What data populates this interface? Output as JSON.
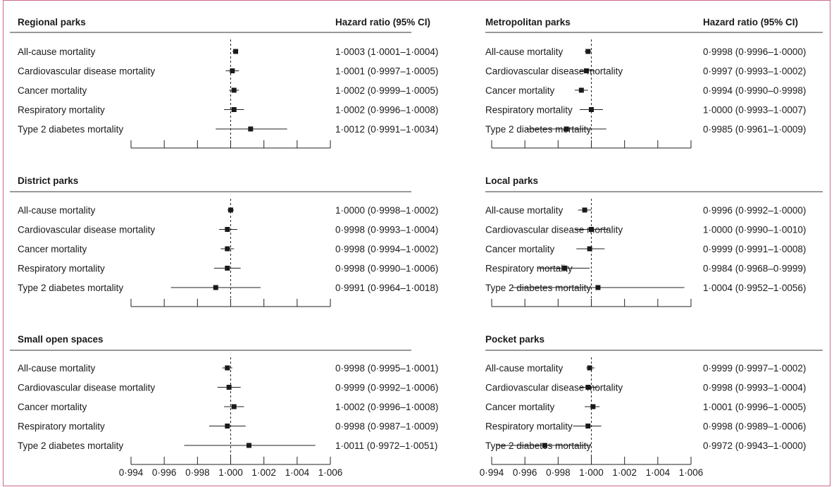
{
  "chart_data": {
    "type": "forest",
    "column_header": "Hazard ratio (95% CI)",
    "outcomes": [
      "All-cause mortality",
      "Cardiovascular disease mortality",
      "Cancer mortality",
      "Respiratory mortality",
      "Type 2 diabetes mortality"
    ],
    "xlim": [
      0.994,
      1.006
    ],
    "xticks": [
      0.994,
      0.996,
      0.998,
      1.0,
      1.002,
      1.004,
      1.006
    ],
    "xtick_labels": [
      "0·994",
      "0·996",
      "0·998",
      "1·000",
      "1·002",
      "1·004",
      "1·006"
    ],
    "reference_line": 1.0,
    "panels": [
      {
        "title": "Regional parks",
        "show_header": true,
        "rows": [
          {
            "hr": 1.0003,
            "lo": 1.0001,
            "hi": 1.0004,
            "text": "1·0003 (1·0001–1·0004)"
          },
          {
            "hr": 1.0001,
            "lo": 0.9997,
            "hi": 1.0005,
            "text": "1·0001 (0·9997–1·0005)"
          },
          {
            "hr": 1.0002,
            "lo": 0.9999,
            "hi": 1.0005,
            "text": "1·0002 (0·9999–1·0005)"
          },
          {
            "hr": 1.0002,
            "lo": 0.9996,
            "hi": 1.0008,
            "text": "1·0002 (0·9996–1·0008)"
          },
          {
            "hr": 1.0012,
            "lo": 0.9991,
            "hi": 1.0034,
            "text": "1·0012 (0·9991–1·0034)"
          }
        ]
      },
      {
        "title": "Metropolitan parks",
        "show_header": true,
        "rows": [
          {
            "hr": 0.9998,
            "lo": 0.9996,
            "hi": 1.0,
            "text": "0·9998 (0·9996–1·0000)"
          },
          {
            "hr": 0.9997,
            "lo": 0.9993,
            "hi": 1.0002,
            "text": "0·9997 (0·9993–1·0002)"
          },
          {
            "hr": 0.9994,
            "lo": 0.999,
            "hi": 0.9998,
            "text": "0·9994 (0·9990–0·9998)"
          },
          {
            "hr": 1.0,
            "lo": 0.9993,
            "hi": 1.0007,
            "text": "1·0000 (0·9993–1·0007)"
          },
          {
            "hr": 0.9985,
            "lo": 0.9961,
            "hi": 1.0009,
            "text": "0·9985 (0·9961–1·0009)"
          }
        ]
      },
      {
        "title": "District parks",
        "show_header": false,
        "rows": [
          {
            "hr": 1.0,
            "lo": 0.9998,
            "hi": 1.0002,
            "text": "1·0000 (0·9998–1·0002)"
          },
          {
            "hr": 0.9998,
            "lo": 0.9993,
            "hi": 1.0004,
            "text": "0·9998 (0·9993–1·0004)"
          },
          {
            "hr": 0.9998,
            "lo": 0.9994,
            "hi": 1.0002,
            "text": "0·9998 (0·9994–1·0002)"
          },
          {
            "hr": 0.9998,
            "lo": 0.999,
            "hi": 1.0006,
            "text": "0·9998 (0·9990–1·0006)"
          },
          {
            "hr": 0.9991,
            "lo": 0.9964,
            "hi": 1.0018,
            "text": "0·9991 (0·9964–1·0018)"
          }
        ]
      },
      {
        "title": "Local parks",
        "show_header": false,
        "rows": [
          {
            "hr": 0.9996,
            "lo": 0.9992,
            "hi": 1.0,
            "text": "0·9996 (0·9992–1·0000)"
          },
          {
            "hr": 1.0,
            "lo": 0.999,
            "hi": 1.001,
            "text": "1·0000 (0·9990–1·0010)"
          },
          {
            "hr": 0.9999,
            "lo": 0.9991,
            "hi": 1.0008,
            "text": "0·9999 (0·9991–1·0008)"
          },
          {
            "hr": 0.9984,
            "lo": 0.9968,
            "hi": 0.9999,
            "text": "0·9984 (0·9968–0·9999)"
          },
          {
            "hr": 1.0004,
            "lo": 0.9952,
            "hi": 1.0056,
            "text": "1·0004 (0·9952–1·0056)"
          }
        ]
      },
      {
        "title": "Small open spaces",
        "show_header": false,
        "rows": [
          {
            "hr": 0.9998,
            "lo": 0.9995,
            "hi": 1.0001,
            "text": "0·9998 (0·9995–1·0001)"
          },
          {
            "hr": 0.9999,
            "lo": 0.9992,
            "hi": 1.0006,
            "text": "0·9999 (0·9992–1·0006)"
          },
          {
            "hr": 1.0002,
            "lo": 0.9996,
            "hi": 1.0008,
            "text": "1·0002 (0·9996–1·0008)"
          },
          {
            "hr": 0.9998,
            "lo": 0.9987,
            "hi": 1.0009,
            "text": "0·9998 (0·9987–1·0009)"
          },
          {
            "hr": 1.0011,
            "lo": 0.9972,
            "hi": 1.0051,
            "text": "1·0011 (0·9972–1·0051)"
          }
        ]
      },
      {
        "title": "Pocket parks",
        "show_header": false,
        "rows": [
          {
            "hr": 0.9999,
            "lo": 0.9997,
            "hi": 1.0002,
            "text": "0·9999 (0·9997–1·0002)"
          },
          {
            "hr": 0.9998,
            "lo": 0.9993,
            "hi": 1.0004,
            "text": "0·9998 (0·9993–1·0004)"
          },
          {
            "hr": 1.0001,
            "lo": 0.9996,
            "hi": 1.0005,
            "text": "1·0001 (0·9996–1·0005)"
          },
          {
            "hr": 0.9998,
            "lo": 0.9989,
            "hi": 1.0006,
            "text": "0·9998 (0·9989–1·0006)"
          },
          {
            "hr": 0.9972,
            "lo": 0.9943,
            "hi": 1.0,
            "text": "0·9972 (0·9943–1·0000)"
          }
        ]
      }
    ]
  }
}
